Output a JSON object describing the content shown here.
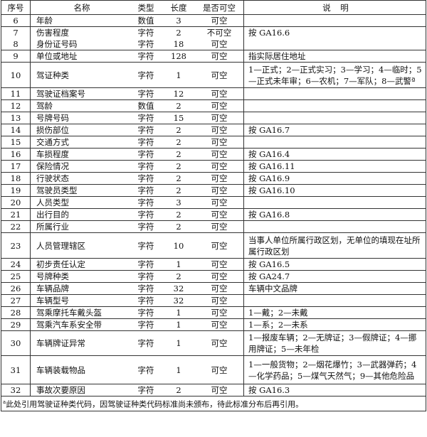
{
  "header": {
    "no": "序号",
    "name": "名称",
    "type": "类型",
    "length": "长度",
    "nullable": "是否可空",
    "desc": "说　明"
  },
  "rows": [
    {
      "no": "6",
      "name": "年龄",
      "type": "数值",
      "length": "3",
      "nullable": "可空",
      "desc": ""
    },
    {
      "no": "7",
      "name": "伤害程度",
      "type": "字符",
      "length": "2",
      "nullable": "不可空",
      "desc": "按 GA16.6"
    },
    {
      "no": "8",
      "name": "身份证号码",
      "type": "字符",
      "length": "18",
      "nullable": "可空",
      "desc": ""
    },
    {
      "no": "9",
      "name": "单位或地址",
      "type": "字符",
      "length": "128",
      "nullable": "可空",
      "desc": "指实际居住地址"
    },
    {
      "no": "10",
      "name": "驾证种类",
      "type": "字符",
      "length": "1",
      "nullable": "可空",
      "desc": "1—正式；2—正式实习；3—学习；4—临时；5—正式未年审；6—农机；7—军队；8—武警ª"
    },
    {
      "no": "11",
      "name": "驾驶证档案号",
      "type": "字符",
      "length": "12",
      "nullable": "可空",
      "desc": ""
    },
    {
      "no": "12",
      "name": "驾龄",
      "type": "数值",
      "length": "2",
      "nullable": "可空",
      "desc": ""
    },
    {
      "no": "13",
      "name": "号牌号码",
      "type": "字符",
      "length": "15",
      "nullable": "可空",
      "desc": ""
    },
    {
      "no": "14",
      "name": "损伤部位",
      "type": "字符",
      "length": "2",
      "nullable": "可空",
      "desc": "按 GA16.7"
    },
    {
      "no": "15",
      "name": "交通方式",
      "type": "字符",
      "length": "2",
      "nullable": "可空",
      "desc": ""
    },
    {
      "no": "16",
      "name": "车损程度",
      "type": "字符",
      "length": "2",
      "nullable": "可空",
      "desc": "按 GA16.4"
    },
    {
      "no": "17",
      "name": "保险情况",
      "type": "字符",
      "length": "2",
      "nullable": "可空",
      "desc": "按 GA16.11"
    },
    {
      "no": "18",
      "name": "行驶状态",
      "type": "字符",
      "length": "2",
      "nullable": "可空",
      "desc": "按 GA16.9"
    },
    {
      "no": "19",
      "name": "驾驶员类型",
      "type": "字符",
      "length": "2",
      "nullable": "可空",
      "desc": "按 GA16.10"
    },
    {
      "no": "20",
      "name": "人员类型",
      "type": "字符",
      "length": "3",
      "nullable": "可空",
      "desc": ""
    },
    {
      "no": "21",
      "name": "出行目的",
      "type": "字符",
      "length": "2",
      "nullable": "可空",
      "desc": "按 GA16.8"
    },
    {
      "no": "22",
      "name": "所属行业",
      "type": "字符",
      "length": "2",
      "nullable": "可空",
      "desc": ""
    },
    {
      "no": "23",
      "name": "人员管理辖区",
      "type": "字符",
      "length": "10",
      "nullable": "可空",
      "desc": "当事人单位所属行政区划，无单位的填现在址所属行政区划"
    },
    {
      "no": "24",
      "name": "初步责任认定",
      "type": "字符",
      "length": "1",
      "nullable": "可空",
      "desc": "按 GA16.5"
    },
    {
      "no": "25",
      "name": "号牌种类",
      "type": "字符",
      "length": "2",
      "nullable": "可空",
      "desc": "按 GA24.7"
    },
    {
      "no": "26",
      "name": "车辆品牌",
      "type": "字符",
      "length": "32",
      "nullable": "可空",
      "desc": "车辆中文品牌"
    },
    {
      "no": "27",
      "name": "车辆型号",
      "type": "字符",
      "length": "32",
      "nullable": "可空",
      "desc": ""
    },
    {
      "no": "28",
      "name": "驾乘摩托车戴头盔",
      "type": "字符",
      "length": "1",
      "nullable": "可空",
      "desc": "1—戴；2—未戴"
    },
    {
      "no": "29",
      "name": "驾乘汽车系安全带",
      "type": "字符",
      "length": "1",
      "nullable": "可空",
      "desc": "1—系；2—未系"
    },
    {
      "no": "30",
      "name": "车辆牌证异常",
      "type": "字符",
      "length": "1",
      "nullable": "可空",
      "desc": "1—报废车辆；2—无牌证；3—假牌证；4—挪用牌证；5—未年检"
    },
    {
      "no": "31",
      "name": "车辆装载物品",
      "type": "字符",
      "length": "1",
      "nullable": "可空",
      "desc": "1—一般货物；2—烟花爆竹；3—武器弹药；4—化学药品；5—煤气天然气；9—其他危险品"
    },
    {
      "no": "32",
      "name": "事故次要原因",
      "type": "字符",
      "length": "2",
      "nullable": "可空",
      "desc": "按 GA16.3"
    }
  ],
  "footnote": {
    "mark": "a",
    "text": "此处引用驾驶证种类代码，因驾驶证种类代码标准尚未颁布，待此标准分布后再引用。"
  }
}
